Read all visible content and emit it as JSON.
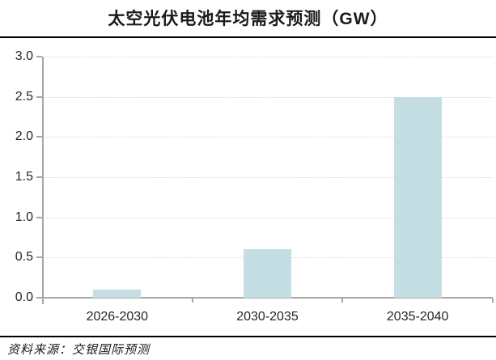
{
  "header": {
    "title": "太空光伏电池年均需求预测（GW）"
  },
  "footer": {
    "source": "资料来源：交银国际预测"
  },
  "chart_data": {
    "type": "bar",
    "title": "太空光伏电池年均需求预测（GW）",
    "categories": [
      "2026-2030",
      "2030-2035",
      "2035-2040"
    ],
    "values": [
      0.1,
      0.6,
      2.5
    ],
    "xlabel": "",
    "ylabel": "",
    "ylim": [
      0,
      3.0
    ],
    "ytick_step": 0.5,
    "ytick_labels": [
      "0.0",
      "0.5",
      "1.0",
      "1.5",
      "2.0",
      "2.5",
      "3.0"
    ],
    "grid": "horizontal-dotted",
    "legend": "none",
    "bar_color": "#c5dee3",
    "axis_color": "#a6a6a6",
    "grid_color": "#d9d9d9",
    "text_color": "#262626",
    "source_note": "资料来源：交银国际预测"
  }
}
